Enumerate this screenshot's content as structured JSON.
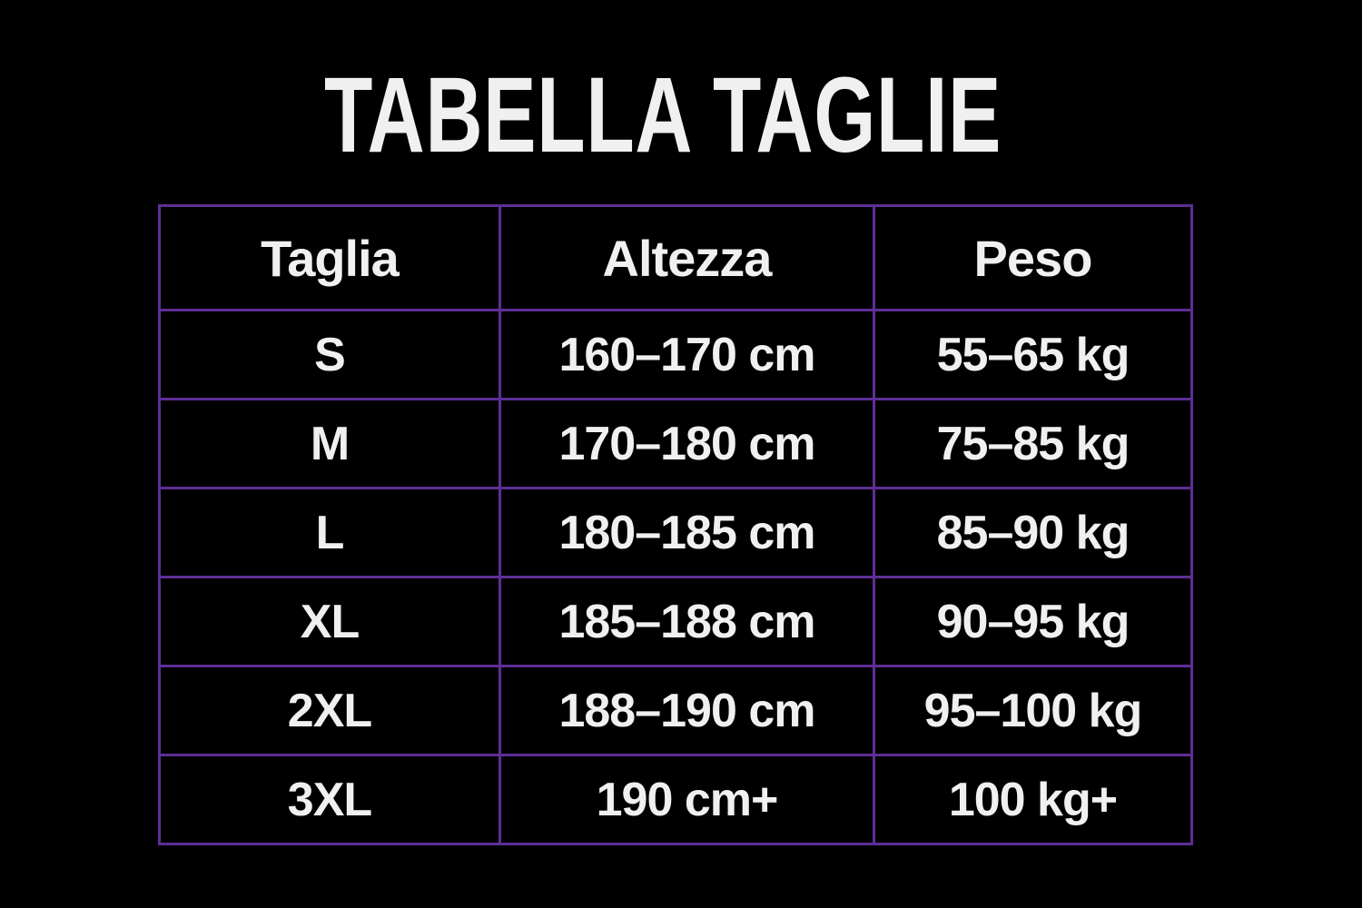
{
  "title": "TABELLA TAGLIE",
  "colors": {
    "background": "#000000",
    "border": "#5e2e96",
    "text": "#f0f0f0"
  },
  "table": {
    "headers": [
      "Taglia",
      "Altezza",
      "Peso"
    ],
    "rows": [
      [
        "S",
        "160–170 cm",
        "55–65 kg"
      ],
      [
        "M",
        "170–180 cm",
        "75–85 kg"
      ],
      [
        "L",
        "180–185 cm",
        "85–90 kg"
      ],
      [
        "XL",
        "185–188 cm",
        "90–95 kg"
      ],
      [
        "2XL",
        "188–190 cm",
        "95–100 kg"
      ],
      [
        "3XL",
        "190 cm+",
        "100 kg+"
      ]
    ]
  }
}
